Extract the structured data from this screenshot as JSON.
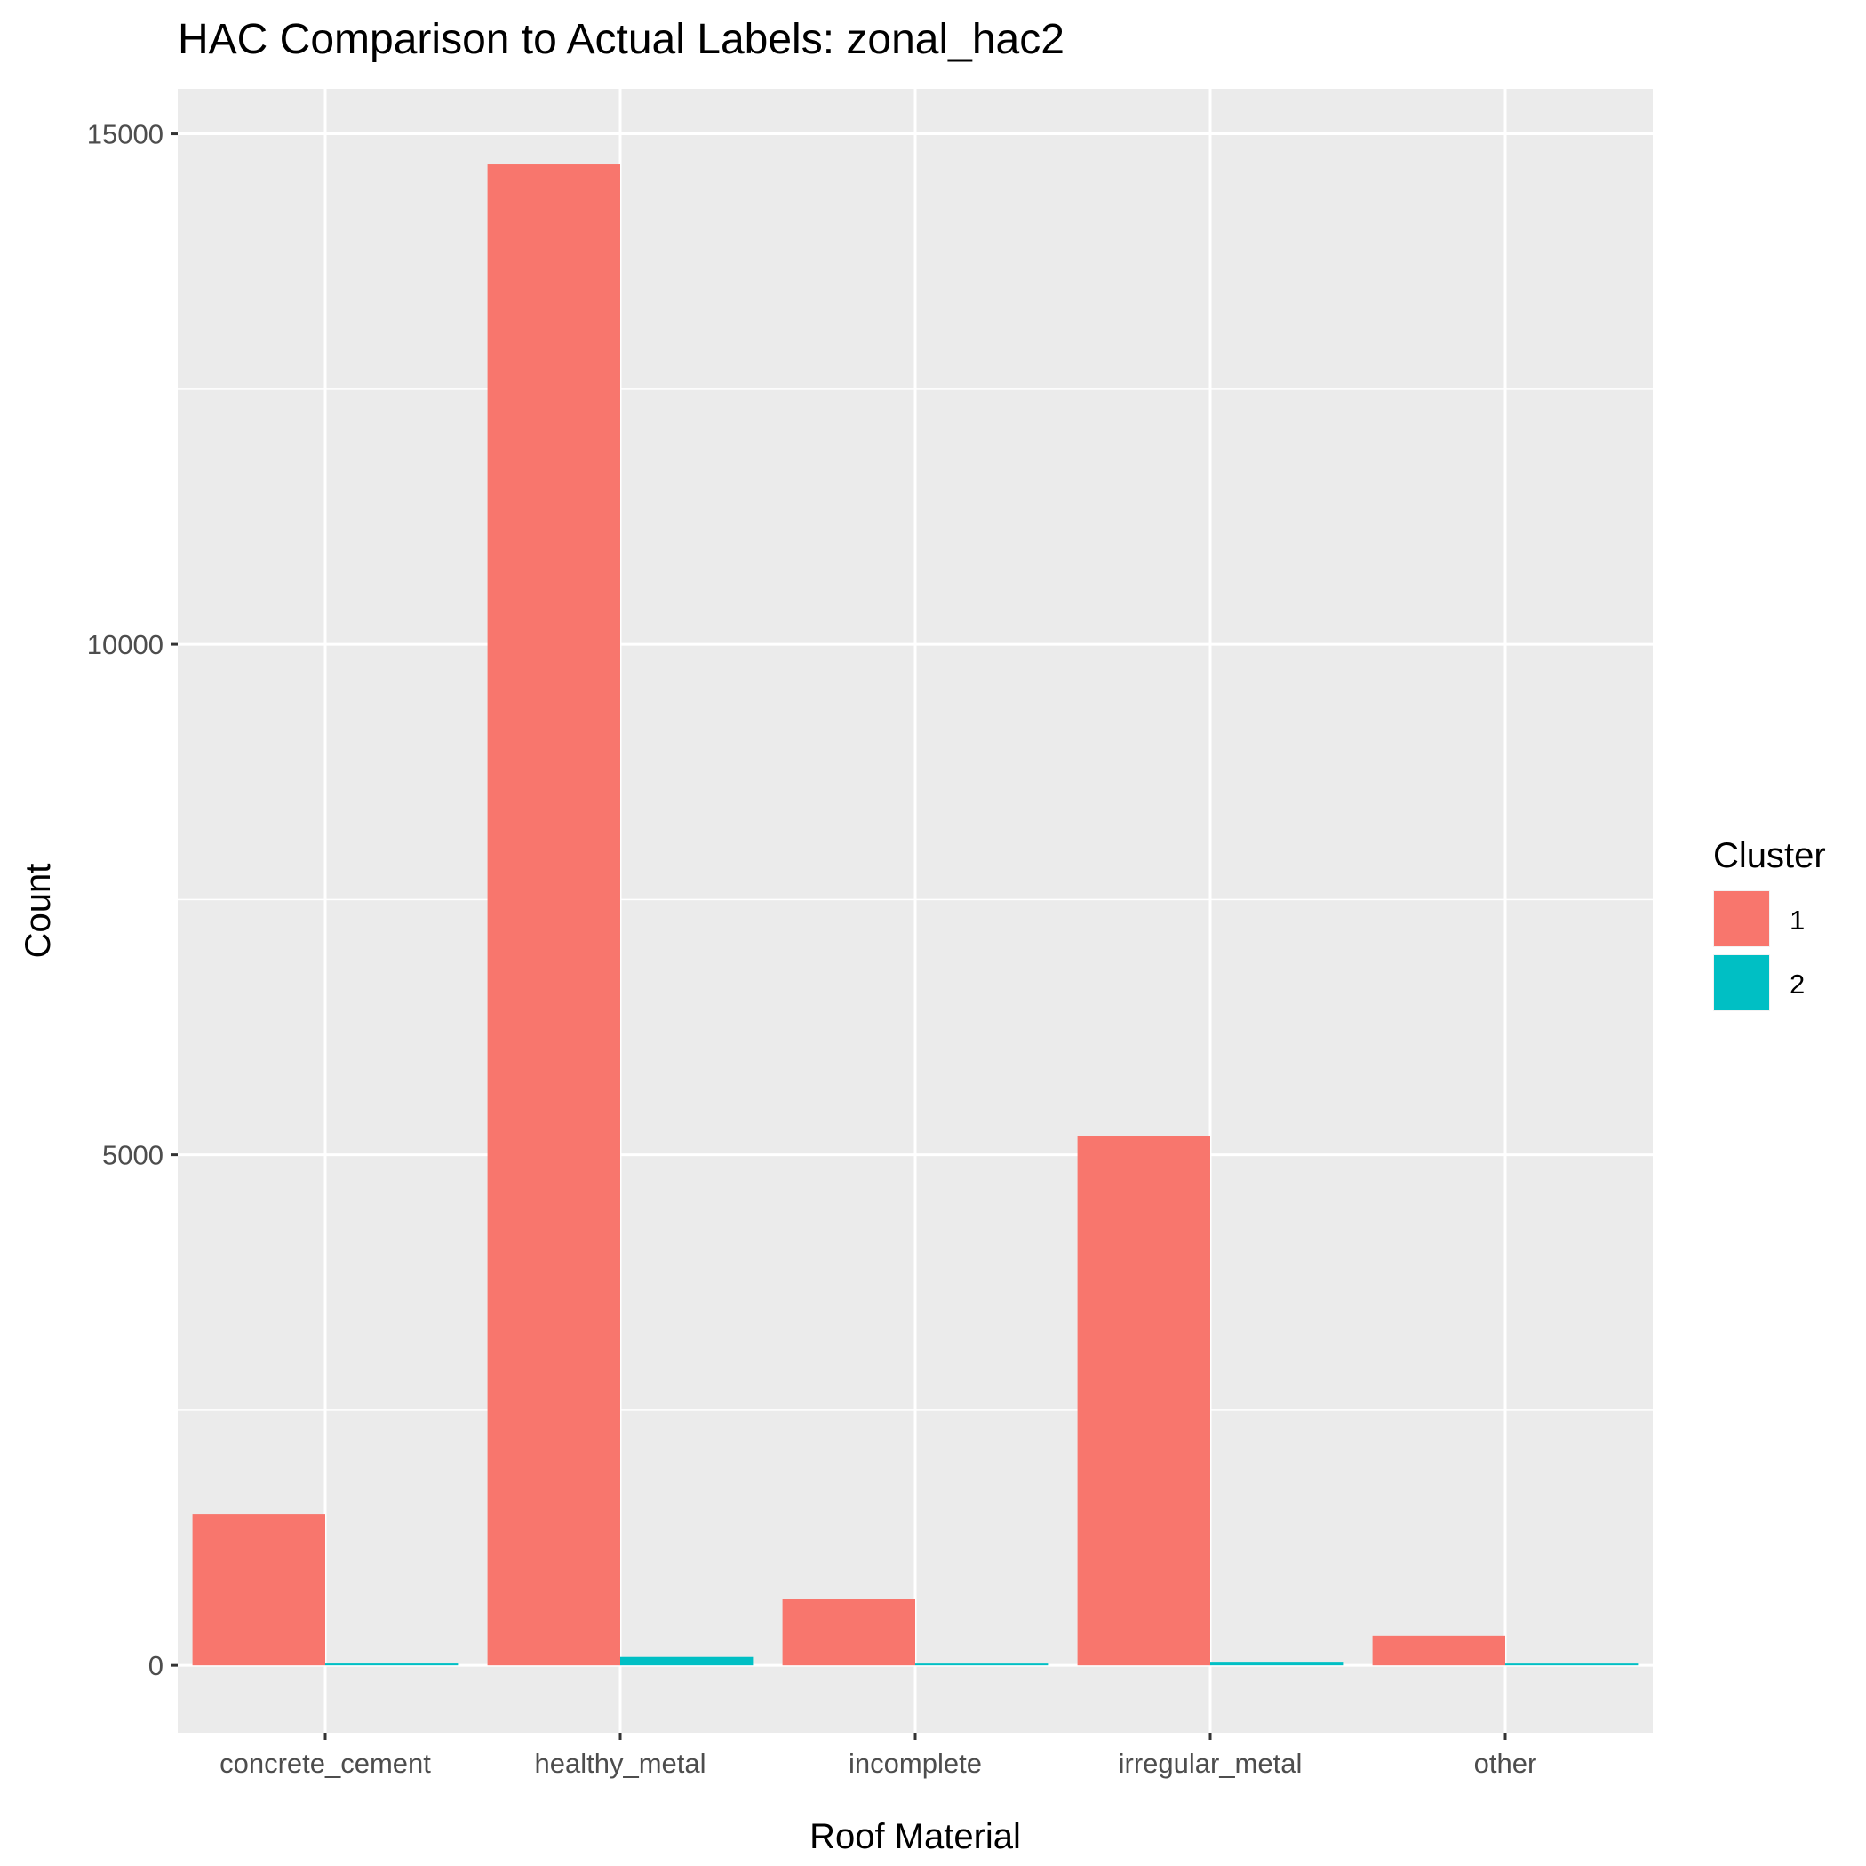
{
  "chart_data": {
    "type": "bar",
    "title": "HAC Comparison to Actual Labels: zonal_hac2",
    "xlabel": "Roof Material",
    "ylabel": "Count",
    "categories": [
      "concrete_cement",
      "healthy_metal",
      "incomplete",
      "irregular_metal",
      "other"
    ],
    "series": [
      {
        "name": "1",
        "color": "#F8766D",
        "values": [
          1480,
          14700,
          650,
          5180,
          290
        ]
      },
      {
        "name": "2",
        "color": "#00BFC4",
        "values": [
          18,
          82,
          8,
          35,
          6
        ]
      }
    ],
    "yticks": [
      0,
      5000,
      10000,
      15000
    ],
    "yminor": [
      2500,
      7500,
      12500
    ],
    "ylim": [
      -660,
      15440
    ],
    "grid": true,
    "legend": {
      "title": "Cluster",
      "position": "right"
    }
  }
}
